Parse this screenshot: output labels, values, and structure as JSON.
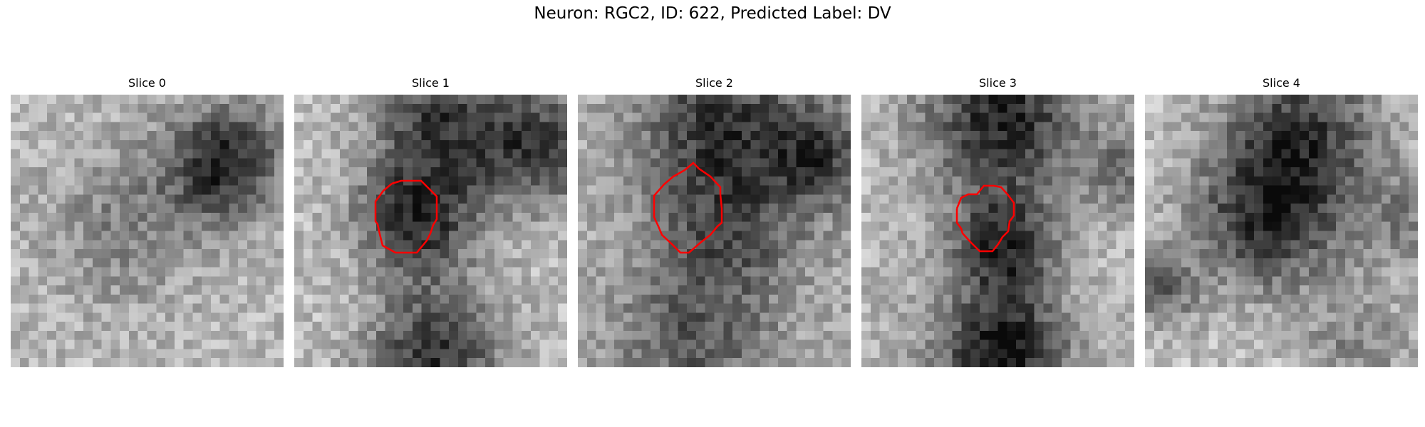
{
  "figure": {
    "suptitle": "Neuron: RGC2, ID: 622, Predicted Label: DV",
    "contour_color": "#ff0000"
  },
  "slices": [
    {
      "title": "Slice 0",
      "has_contour": false
    },
    {
      "title": "Slice 1",
      "has_contour": true
    },
    {
      "title": "Slice 2",
      "has_contour": true
    },
    {
      "title": "Slice 3",
      "has_contour": true
    },
    {
      "title": "Slice 4",
      "has_contour": false
    }
  ]
}
